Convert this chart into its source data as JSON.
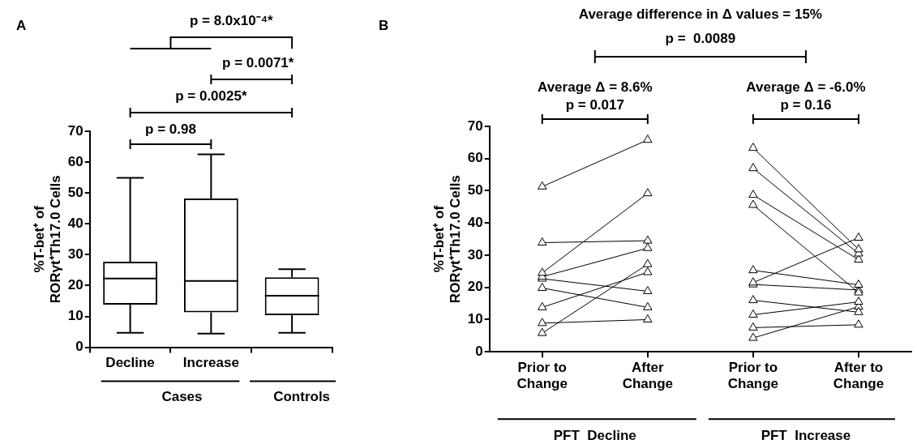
{
  "chart_data": [
    {
      "type": "box",
      "categories": [
        "Decline",
        "Increase",
        null
      ],
      "ylabel": "%T-bet⁺ of\nRORγt⁺Th17.0 Cells",
      "ylim": [
        0,
        70
      ],
      "yticks": [
        0,
        10,
        20,
        30,
        40,
        50,
        60,
        70
      ],
      "grid": false,
      "boxes": [
        {
          "low": 4.7,
          "q1": 13.8,
          "median": 22.3,
          "q3": 27.7,
          "high": 54.9
        },
        {
          "low": 4.4,
          "q1": 11.3,
          "median": 21.5,
          "q3": 48.2,
          "high": 62.5
        },
        {
          "low": 4.7,
          "q1": 10.4,
          "median": 16.7,
          "q3": 22.7,
          "high": 25.3
        }
      ],
      "annotations": [
        "A",
        "p = 8.0x10⁻⁴*",
        "p = 0.0071*",
        "p = 0.0025*",
        "p = 0.98",
        "Cases",
        "Controls"
      ]
    },
    {
      "type": "line",
      "categories": [
        "Prior to Change",
        "After Change",
        "Prior to Change",
        "After to Change"
      ],
      "ylabel": "%T-bet⁺ of\nRORγt⁺Th17.0 Cells",
      "ylim": [
        0,
        70
      ],
      "yticks": [
        0,
        10,
        20,
        30,
        40,
        50,
        60,
        70
      ],
      "grid": false,
      "marker": "triangle",
      "series": [
        {
          "color": "#000000",
          "values": [
            51.3,
            65.8,
            null,
            null
          ]
        },
        {
          "color": "#000000",
          "values": [
            24.5,
            49.2,
            null,
            null
          ]
        },
        {
          "color": "#000000",
          "values": [
            33.9,
            34.5,
            null,
            null
          ]
        },
        {
          "color": "#000000",
          "values": [
            23.3,
            32.2,
            null,
            null
          ]
        },
        {
          "color": "#000000",
          "values": [
            22.7,
            18.8,
            null,
            null
          ]
        },
        {
          "color": "#000000",
          "values": [
            19.8,
            13.8,
            null,
            null
          ]
        },
        {
          "color": "#000000",
          "values": [
            13.8,
            24.7,
            null,
            null
          ]
        },
        {
          "color": "#000000",
          "values": [
            8.9,
            10,
            null,
            null
          ]
        },
        {
          "color": "#000000",
          "values": [
            5.8,
            27.2,
            null,
            null
          ]
        },
        {
          "color": "#000000",
          "values": [
            null,
            null,
            63.3,
            31.8
          ]
        },
        {
          "color": "#000000",
          "values": [
            null,
            null,
            57,
            30.5
          ]
        },
        {
          "color": "#000000",
          "values": [
            null,
            null,
            48.7,
            28.6
          ]
        },
        {
          "color": "#000000",
          "values": [
            null,
            null,
            45.6,
            18.4
          ]
        },
        {
          "color": "#000000",
          "values": [
            null,
            null,
            25.3,
            20.8
          ]
        },
        {
          "color": "#000000",
          "values": [
            null,
            null,
            21.5,
            35.4
          ]
        },
        {
          "color": "#000000",
          "values": [
            null,
            null,
            20.9,
            19.2
          ]
        },
        {
          "color": "#000000",
          "values": [
            null,
            null,
            16,
            12.3
          ]
        },
        {
          "color": "#000000",
          "values": [
            null,
            null,
            11.5,
            15.5
          ]
        },
        {
          "color": "#000000",
          "values": [
            null,
            null,
            7.5,
            8.4
          ]
        },
        {
          "color": "#000000",
          "values": [
            null,
            null,
            4.3,
            14
          ]
        }
      ],
      "annotations": [
        "B",
        "Average difference in Δ values = 15%",
        "p =  0.0089",
        "Average Δ = 8.6%",
        "p = 0.017",
        "Average Δ = -6.0%",
        "p = 0.16",
        "PFT  Decline",
        "PFT  Increase"
      ]
    }
  ]
}
